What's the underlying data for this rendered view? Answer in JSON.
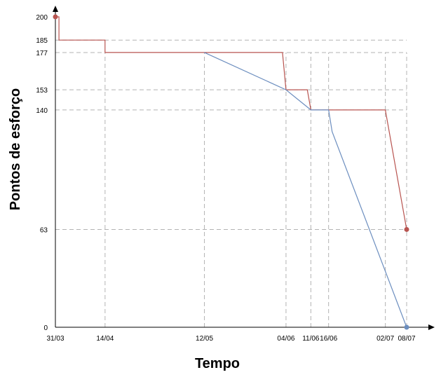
{
  "chart_data": {
    "type": "line",
    "xlabel": "Tempo",
    "ylabel": "Pontos de esforço",
    "x_tick_labels": [
      "31/03",
      "14/04",
      "12/05",
      "04/06",
      "11/06",
      "16/06",
      "02/07",
      "08/07"
    ],
    "y_tick_labels": [
      "0",
      "63",
      "140",
      "153",
      "177",
      "185",
      "200"
    ],
    "ylim": [
      0,
      200
    ],
    "xlim": [
      "31/03",
      "08/07"
    ],
    "grid": "dashed",
    "series": [
      {
        "color": "#b85450",
        "style": "step",
        "points": [
          {
            "x": "31/03",
            "y": 200
          },
          {
            "x": "01/04",
            "y": 200
          },
          {
            "x": "01/04",
            "y": 185
          },
          {
            "x": "14/04",
            "y": 185
          },
          {
            "x": "14/04",
            "y": 177
          },
          {
            "x": "03/06",
            "y": 177
          },
          {
            "x": "04/06",
            "y": 153
          },
          {
            "x": "10/06",
            "y": 153
          },
          {
            "x": "11/06",
            "y": 140
          },
          {
            "x": "02/07",
            "y": 140
          },
          {
            "x": "08/07",
            "y": 63
          }
        ],
        "markers": [
          {
            "x": "31/03",
            "y": 200
          },
          {
            "x": "08/07",
            "y": 63
          }
        ]
      },
      {
        "color": "#6c8ebf",
        "style": "line",
        "points": [
          {
            "x": "12/05",
            "y": 177
          },
          {
            "x": "04/06",
            "y": 153
          },
          {
            "x": "11/06",
            "y": 140
          },
          {
            "x": "16/06",
            "y": 140
          },
          {
            "x": "17/06",
            "y": 126
          },
          {
            "x": "08/07",
            "y": 0
          }
        ],
        "markers": [
          {
            "x": "08/07",
            "y": 0
          }
        ]
      }
    ]
  }
}
